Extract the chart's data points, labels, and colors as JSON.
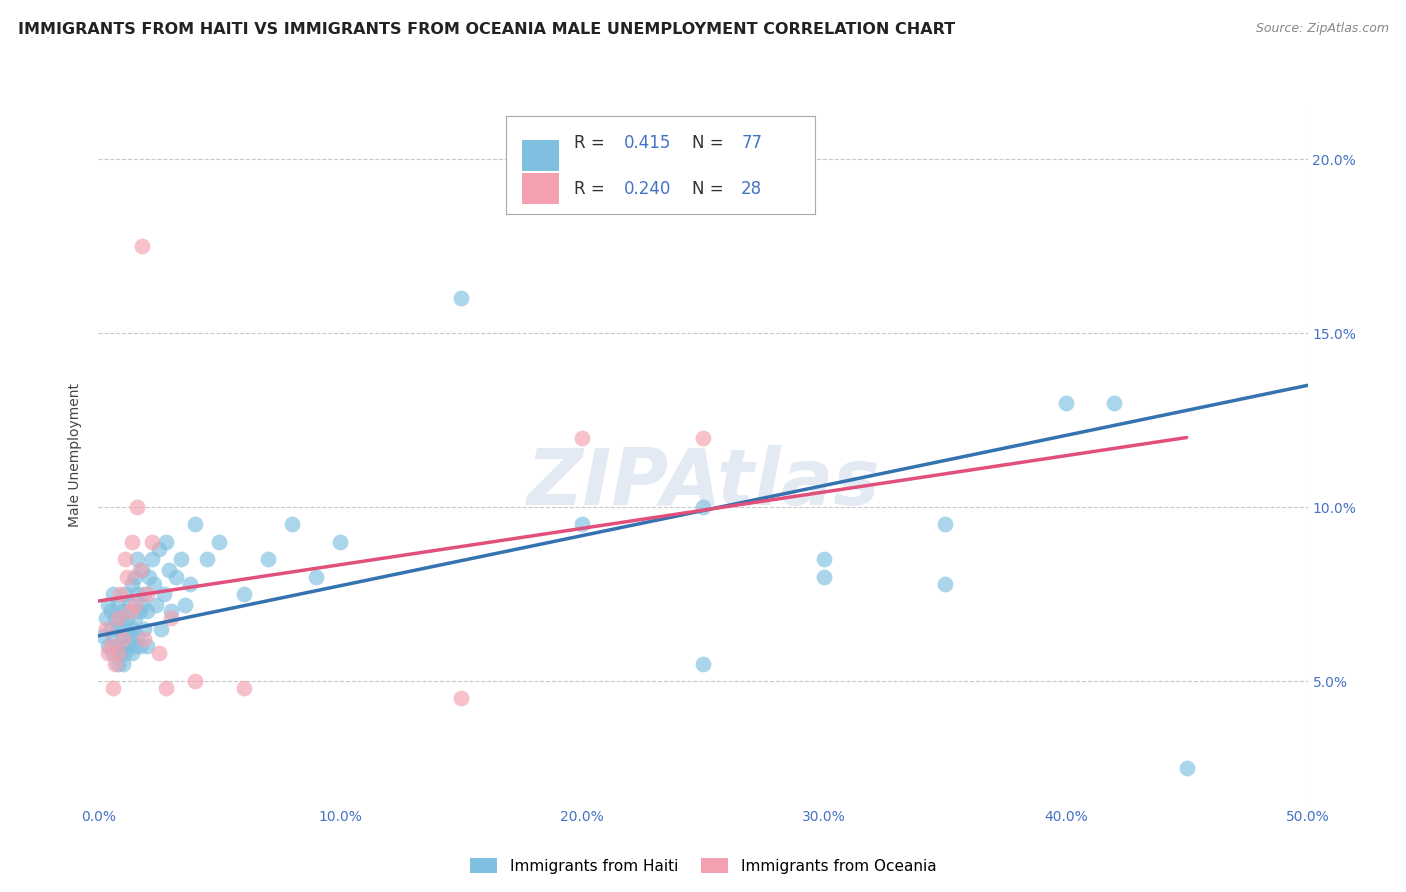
{
  "title": "IMMIGRANTS FROM HAITI VS IMMIGRANTS FROM OCEANIA MALE UNEMPLOYMENT CORRELATION CHART",
  "source": "Source: ZipAtlas.com",
  "ylabel": "Male Unemployment",
  "xlim": [
    0.0,
    0.5
  ],
  "ylim": [
    0.015,
    0.215
  ],
  "xticks": [
    0.0,
    0.1,
    0.2,
    0.3,
    0.4,
    0.5
  ],
  "xticklabels": [
    "0.0%",
    "10.0%",
    "20.0%",
    "30.0%",
    "40.0%",
    "50.0%"
  ],
  "yticks": [
    0.05,
    0.1,
    0.15,
    0.2
  ],
  "yticklabels": [
    "5.0%",
    "10.0%",
    "15.0%",
    "20.0%"
  ],
  "legend_label1": "Immigrants from Haiti",
  "legend_label2": "Immigrants from Oceania",
  "color_haiti": "#7fbfdf",
  "color_oceania": "#f4a0b0",
  "color_line_haiti": "#3572b0",
  "color_line_oceania": "#e0507a",
  "background_color": "#ffffff",
  "grid_color": "#c8c8c8",
  "watermark": "ZIPAtlas",
  "title_fontsize": 11.5,
  "source_fontsize": 9,
  "tick_fontsize": 10,
  "legend_fontsize": 12,
  "R1": "0.415",
  "N1": "77",
  "R2": "0.240",
  "N2": "28",
  "haiti_x": [
    0.002,
    0.003,
    0.004,
    0.004,
    0.005,
    0.005,
    0.006,
    0.006,
    0.006,
    0.007,
    0.007,
    0.008,
    0.008,
    0.008,
    0.009,
    0.009,
    0.01,
    0.01,
    0.01,
    0.01,
    0.011,
    0.011,
    0.011,
    0.012,
    0.012,
    0.013,
    0.013,
    0.014,
    0.014,
    0.014,
    0.015,
    0.015,
    0.015,
    0.016,
    0.016,
    0.016,
    0.017,
    0.017,
    0.018,
    0.018,
    0.019,
    0.019,
    0.02,
    0.02,
    0.021,
    0.022,
    0.023,
    0.024,
    0.025,
    0.026,
    0.027,
    0.028,
    0.029,
    0.03,
    0.032,
    0.034,
    0.036,
    0.038,
    0.04,
    0.045,
    0.05,
    0.06,
    0.07,
    0.08,
    0.09,
    0.1,
    0.15,
    0.2,
    0.25,
    0.3,
    0.35,
    0.4,
    0.42,
    0.3,
    0.25,
    0.35,
    0.45
  ],
  "haiti_y": [
    0.063,
    0.068,
    0.06,
    0.072,
    0.065,
    0.07,
    0.058,
    0.063,
    0.075,
    0.06,
    0.068,
    0.055,
    0.065,
    0.072,
    0.058,
    0.068,
    0.06,
    0.063,
    0.055,
    0.07,
    0.058,
    0.065,
    0.075,
    0.06,
    0.068,
    0.063,
    0.072,
    0.058,
    0.065,
    0.078,
    0.06,
    0.068,
    0.08,
    0.063,
    0.075,
    0.085,
    0.07,
    0.06,
    0.072,
    0.082,
    0.065,
    0.075,
    0.06,
    0.07,
    0.08,
    0.085,
    0.078,
    0.072,
    0.088,
    0.065,
    0.075,
    0.09,
    0.082,
    0.07,
    0.08,
    0.085,
    0.072,
    0.078,
    0.095,
    0.085,
    0.09,
    0.075,
    0.085,
    0.095,
    0.08,
    0.09,
    0.16,
    0.095,
    0.1,
    0.085,
    0.095,
    0.13,
    0.13,
    0.08,
    0.055,
    0.078,
    0.025
  ],
  "oceania_x": [
    0.003,
    0.004,
    0.005,
    0.006,
    0.007,
    0.008,
    0.008,
    0.009,
    0.01,
    0.011,
    0.012,
    0.013,
    0.014,
    0.015,
    0.016,
    0.017,
    0.018,
    0.019,
    0.02,
    0.022,
    0.025,
    0.028,
    0.03,
    0.04,
    0.06,
    0.15,
    0.2,
    0.25
  ],
  "oceania_y": [
    0.065,
    0.058,
    0.06,
    0.048,
    0.055,
    0.068,
    0.058,
    0.075,
    0.062,
    0.085,
    0.08,
    0.07,
    0.09,
    0.072,
    0.1,
    0.082,
    0.175,
    0.062,
    0.075,
    0.09,
    0.058,
    0.048,
    0.068,
    0.05,
    0.048,
    0.045,
    0.12,
    0.12
  ],
  "haiti_line_x0": 0.0,
  "haiti_line_x1": 0.5,
  "haiti_line_y0": 0.063,
  "haiti_line_y1": 0.135,
  "oceania_line_x0": 0.0,
  "oceania_line_x1": 0.45,
  "oceania_line_y0": 0.073,
  "oceania_line_y1": 0.12
}
